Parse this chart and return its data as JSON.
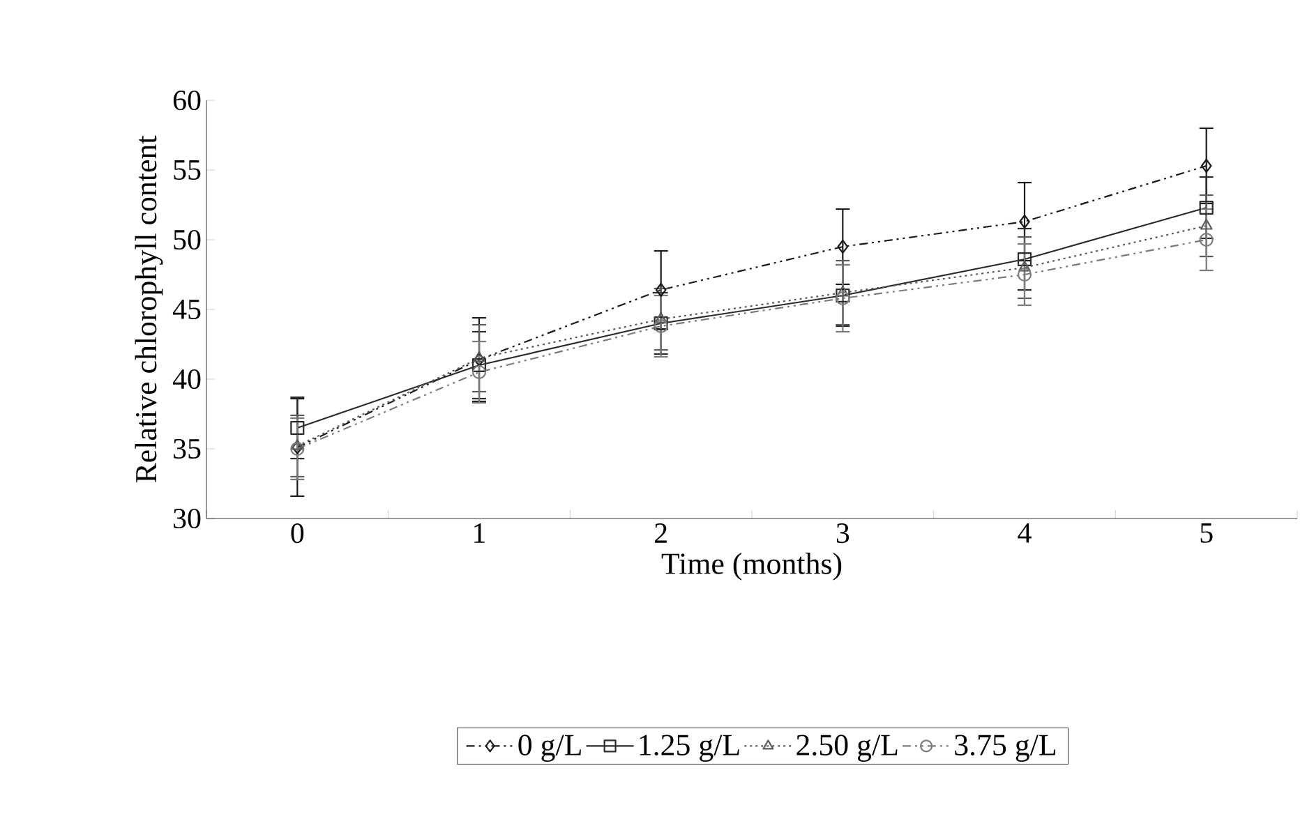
{
  "chart_data": {
    "type": "line",
    "xlabel": "Time (months)",
    "ylabel": "Relative chlorophyll content",
    "categories": [
      "0",
      "1",
      "2",
      "3",
      "4",
      "5"
    ],
    "ylim": [
      30,
      60
    ],
    "yticks": [
      30,
      35,
      40,
      45,
      50,
      55,
      60
    ],
    "grid": false,
    "legend": "bottom",
    "series": [
      {
        "name": "0 g/L",
        "color": "#1a1a1a",
        "marker": "diamond",
        "line_style": "dashed",
        "values": [
          35.1,
          41.4,
          46.4,
          49.5,
          51.3,
          55.3
        ],
        "errors": [
          3.5,
          3.0,
          2.8,
          2.7,
          2.8,
          2.7
        ]
      },
      {
        "name": "1.25 g/L",
        "color": "#2b2b2b",
        "marker": "square",
        "line_style": "solid",
        "values": [
          36.5,
          41.0,
          44.0,
          46.0,
          48.6,
          52.3
        ],
        "errors": [
          2.2,
          2.4,
          2.2,
          2.2,
          2.2,
          2.2
        ]
      },
      {
        "name": "2.50 g/L",
        "color": "#5a5a5a",
        "marker": "triangle",
        "line_style": "dotted",
        "values": [
          35.2,
          41.5,
          44.3,
          46.2,
          48.0,
          51.0
        ],
        "errors": [
          2.2,
          2.4,
          2.2,
          2.3,
          2.2,
          2.2
        ]
      },
      {
        "name": "3.75 g/L",
        "color": "#7a7a7a",
        "marker": "circle",
        "line_style": "dashed",
        "values": [
          35.0,
          40.5,
          43.8,
          45.8,
          47.5,
          50.0
        ],
        "errors": [
          2.2,
          2.2,
          2.2,
          2.4,
          2.2,
          2.2
        ]
      }
    ]
  }
}
